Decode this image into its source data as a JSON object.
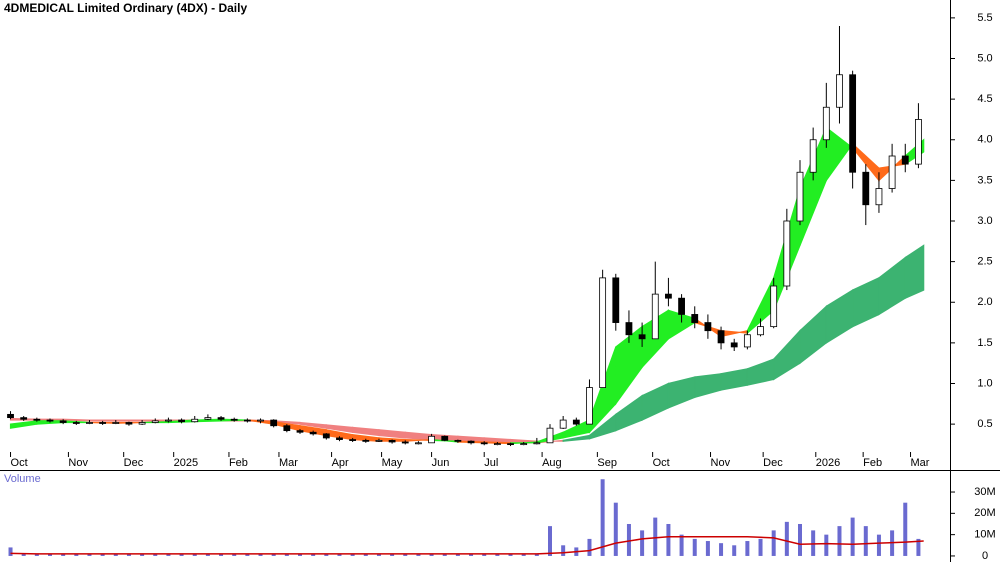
{
  "chart_data": [
    {
      "type": "candlestick",
      "title": "4DMEDICAL Limited Ordinary (4DX) - Daily",
      "x": [
        0,
        5,
        10,
        15,
        20,
        25,
        30,
        35,
        40,
        45,
        50,
        55,
        60,
        65,
        70,
        75,
        80,
        85,
        90,
        95,
        100,
        105,
        110,
        115,
        120,
        125,
        130,
        135,
        140,
        145,
        150,
        155,
        160,
        165,
        170,
        175,
        180,
        185,
        190,
        195,
        200,
        205,
        210,
        215,
        220,
        225,
        230,
        235,
        240,
        245,
        250,
        255,
        260,
        265,
        270,
        275,
        280,
        285,
        290,
        295,
        300,
        305,
        310,
        315,
        320,
        325,
        330,
        335,
        340,
        345
      ],
      "open": [
        0.62,
        0.58,
        0.56,
        0.55,
        0.54,
        0.52,
        0.51,
        0.52,
        0.51,
        0.52,
        0.5,
        0.52,
        0.54,
        0.55,
        0.53,
        0.56,
        0.58,
        0.56,
        0.55,
        0.54,
        0.55,
        0.48,
        0.42,
        0.4,
        0.38,
        0.33,
        0.31,
        0.3,
        0.29,
        0.3,
        0.28,
        0.27,
        0.27,
        0.35,
        0.3,
        0.29,
        0.27,
        0.26,
        0.26,
        0.25,
        0.26,
        0.27,
        0.45,
        0.55,
        0.5,
        0.95,
        2.3,
        1.75,
        1.6,
        1.55,
        2.1,
        2.05,
        1.85,
        1.75,
        1.65,
        1.5,
        1.45,
        1.6,
        1.7,
        2.2,
        3.0,
        3.6,
        4.0,
        4.4,
        4.8,
        3.6,
        3.2,
        3.4,
        3.8,
        3.7
      ],
      "high": [
        0.66,
        0.6,
        0.58,
        0.57,
        0.56,
        0.54,
        0.55,
        0.54,
        0.55,
        0.53,
        0.55,
        0.57,
        0.58,
        0.57,
        0.6,
        0.62,
        0.6,
        0.58,
        0.57,
        0.57,
        0.56,
        0.5,
        0.44,
        0.42,
        0.39,
        0.35,
        0.33,
        0.32,
        0.32,
        0.31,
        0.3,
        0.29,
        0.38,
        0.36,
        0.31,
        0.3,
        0.29,
        0.28,
        0.27,
        0.28,
        0.33,
        0.5,
        0.6,
        0.58,
        1.05,
        2.4,
        2.35,
        1.9,
        1.75,
        2.5,
        2.3,
        2.1,
        1.95,
        1.85,
        1.7,
        1.55,
        1.65,
        1.8,
        2.3,
        3.15,
        3.75,
        4.15,
        4.7,
        5.4,
        4.85,
        3.7,
        3.6,
        3.95,
        3.95,
        4.45
      ],
      "low": [
        0.56,
        0.54,
        0.53,
        0.52,
        0.5,
        0.49,
        0.5,
        0.49,
        0.5,
        0.48,
        0.49,
        0.51,
        0.52,
        0.51,
        0.52,
        0.55,
        0.54,
        0.53,
        0.52,
        0.51,
        0.46,
        0.4,
        0.38,
        0.36,
        0.31,
        0.29,
        0.28,
        0.27,
        0.28,
        0.26,
        0.25,
        0.25,
        0.27,
        0.29,
        0.27,
        0.25,
        0.24,
        0.24,
        0.23,
        0.24,
        0.25,
        0.27,
        0.44,
        0.48,
        0.5,
        0.95,
        1.65,
        1.5,
        1.45,
        1.55,
        1.95,
        1.75,
        1.68,
        1.55,
        1.42,
        1.4,
        1.42,
        1.58,
        1.68,
        2.15,
        2.95,
        3.5,
        3.9,
        4.2,
        3.4,
        2.95,
        3.1,
        3.35,
        3.6,
        3.65
      ],
      "close": [
        0.58,
        0.56,
        0.55,
        0.54,
        0.52,
        0.51,
        0.52,
        0.51,
        0.52,
        0.5,
        0.52,
        0.54,
        0.55,
        0.53,
        0.56,
        0.58,
        0.56,
        0.55,
        0.54,
        0.55,
        0.48,
        0.42,
        0.4,
        0.38,
        0.33,
        0.31,
        0.3,
        0.29,
        0.3,
        0.28,
        0.27,
        0.27,
        0.35,
        0.3,
        0.29,
        0.27,
        0.26,
        0.26,
        0.25,
        0.26,
        0.27,
        0.45,
        0.55,
        0.5,
        0.95,
        2.3,
        1.75,
        1.6,
        1.55,
        2.1,
        2.05,
        1.85,
        1.75,
        1.65,
        1.5,
        1.45,
        1.6,
        1.7,
        2.2,
        3.0,
        3.6,
        4.0,
        4.4,
        4.8,
        3.6,
        3.2,
        3.4,
        3.8,
        3.7,
        4.25
      ],
      "up_color": "#ffffff",
      "down_color": "#000000",
      "outline_color": "#000000",
      "ribbons": [
        {
          "x": [
            0,
            10,
            20,
            30,
            40,
            50,
            60,
            70,
            80,
            90,
            100,
            110,
            120,
            130,
            140,
            150,
            160,
            170,
            180,
            190,
            200,
            210,
            220,
            230,
            240,
            250,
            260,
            270,
            280,
            290,
            300,
            310,
            320,
            330,
            340,
            347
          ],
          "fast": [
            0.55,
            0.55,
            0.55,
            0.54,
            0.54,
            0.54,
            0.54,
            0.54,
            0.54,
            0.54,
            0.53,
            0.5,
            0.45,
            0.4,
            0.36,
            0.33,
            0.31,
            0.29,
            0.28,
            0.27,
            0.27,
            0.3,
            0.36,
            0.62,
            0.85,
            1.0,
            1.08,
            1.12,
            1.18,
            1.3,
            1.65,
            1.95,
            2.15,
            2.3,
            2.55,
            2.7
          ],
          "slow": [
            0.57,
            0.56,
            0.56,
            0.55,
            0.55,
            0.55,
            0.55,
            0.55,
            0.55,
            0.55,
            0.54,
            0.52,
            0.49,
            0.46,
            0.43,
            0.4,
            0.37,
            0.35,
            0.33,
            0.31,
            0.29,
            0.29,
            0.32,
            0.42,
            0.55,
            0.7,
            0.83,
            0.92,
            0.98,
            1.05,
            1.25,
            1.5,
            1.7,
            1.85,
            2.05,
            2.15
          ],
          "up_color": "#3cb371",
          "down_color": "#f08080"
        },
        {
          "x": [
            0,
            10,
            20,
            30,
            40,
            50,
            60,
            70,
            80,
            90,
            100,
            110,
            120,
            130,
            140,
            150,
            160,
            170,
            180,
            190,
            200,
            210,
            220,
            230,
            240,
            250,
            260,
            270,
            280,
            290,
            300,
            310,
            320,
            330,
            340,
            347
          ],
          "fast": [
            0.5,
            0.54,
            0.54,
            0.52,
            0.51,
            0.52,
            0.53,
            0.55,
            0.56,
            0.55,
            0.5,
            0.42,
            0.36,
            0.31,
            0.29,
            0.29,
            0.31,
            0.28,
            0.27,
            0.26,
            0.28,
            0.4,
            0.55,
            1.45,
            1.7,
            1.9,
            1.8,
            1.58,
            1.65,
            2.3,
            3.4,
            4.15,
            3.9,
            3.5,
            3.8,
            4.0
          ],
          "slow": [
            0.45,
            0.5,
            0.52,
            0.52,
            0.52,
            0.52,
            0.52,
            0.53,
            0.54,
            0.55,
            0.53,
            0.48,
            0.43,
            0.37,
            0.33,
            0.31,
            0.3,
            0.29,
            0.28,
            0.27,
            0.27,
            0.33,
            0.4,
            0.75,
            1.2,
            1.55,
            1.75,
            1.65,
            1.62,
            1.9,
            2.7,
            3.5,
            3.95,
            3.65,
            3.7,
            3.85
          ],
          "up_color": "#22ee22",
          "down_color": "#ff6a1a"
        }
      ],
      "xlim": [
        -4,
        357
      ],
      "ylim": [
        0.12,
        5.72
      ],
      "xticks": [
        {
          "value": 0,
          "label": "Oct"
        },
        {
          "value": 22,
          "label": "Nov"
        },
        {
          "value": 43,
          "label": "Dec"
        },
        {
          "value": 62,
          "label": "2025"
        },
        {
          "value": 83,
          "label": "Feb"
        },
        {
          "value": 102,
          "label": "Mar"
        },
        {
          "value": 122,
          "label": "Apr"
        },
        {
          "value": 141,
          "label": "May"
        },
        {
          "value": 160,
          "label": "Jun"
        },
        {
          "value": 180,
          "label": "Jul"
        },
        {
          "value": 202,
          "label": "Aug"
        },
        {
          "value": 223,
          "label": "Sep"
        },
        {
          "value": 244,
          "label": "Oct"
        },
        {
          "value": 266,
          "label": "Nov"
        },
        {
          "value": 286,
          "label": "Dec"
        },
        {
          "value": 306,
          "label": "2026"
        },
        {
          "value": 324,
          "label": "Feb"
        },
        {
          "value": 342,
          "label": "Mar"
        }
      ],
      "yticks": [
        0.5,
        {
          "value": 1,
          "label": "1.0"
        },
        1.5,
        {
          "value": 2,
          "label": "2.0"
        },
        2.5,
        {
          "value": 3,
          "label": "3.0"
        },
        3.5,
        {
          "value": 4,
          "label": "4.0"
        },
        4.5,
        {
          "value": 5,
          "label": "5.0"
        },
        5.5
      ]
    },
    {
      "type": "bar",
      "title": "Volume",
      "x": [
        0,
        5,
        10,
        15,
        20,
        25,
        30,
        35,
        40,
        45,
        50,
        55,
        60,
        65,
        70,
        75,
        80,
        85,
        90,
        95,
        100,
        105,
        110,
        115,
        120,
        125,
        130,
        135,
        140,
        145,
        150,
        155,
        160,
        165,
        170,
        175,
        180,
        185,
        190,
        195,
        200,
        205,
        210,
        215,
        220,
        225,
        230,
        235,
        240,
        245,
        250,
        255,
        260,
        265,
        270,
        275,
        280,
        285,
        290,
        295,
        300,
        305,
        310,
        315,
        320,
        325,
        330,
        335,
        340,
        345
      ],
      "values": [
        4000000,
        1000000,
        1000000,
        1000000,
        1000000,
        1000000,
        1000000,
        1000000,
        1000000,
        1000000,
        1000000,
        1000000,
        1000000,
        1000000,
        1000000,
        1000000,
        1000000,
        1000000,
        1000000,
        1000000,
        1000000,
        1000000,
        1000000,
        1000000,
        1000000,
        1000000,
        1000000,
        1000000,
        1000000,
        1000000,
        1000000,
        1000000,
        1000000,
        1000000,
        1000000,
        1000000,
        1000000,
        1000000,
        1000000,
        1000000,
        1000000,
        14000000,
        5000000,
        4000000,
        8000000,
        36000000,
        25000000,
        15000000,
        12000000,
        18000000,
        15000000,
        10000000,
        8000000,
        7000000,
        6000000,
        5000000,
        7000000,
        8000000,
        12000000,
        16000000,
        15000000,
        12000000,
        10000000,
        14000000,
        18000000,
        14000000,
        10000000,
        12000000,
        25000000,
        8000000
      ],
      "color": "#6a6ad0",
      "ma": {
        "x": [
          0,
          10,
          20,
          30,
          40,
          50,
          60,
          70,
          80,
          90,
          100,
          110,
          120,
          130,
          140,
          150,
          160,
          170,
          180,
          190,
          200,
          210,
          220,
          230,
          240,
          250,
          260,
          270,
          280,
          290,
          300,
          310,
          320,
          330,
          340,
          347
        ],
        "values": [
          1200000,
          1000000,
          1000000,
          1000000,
          1000000,
          1000000,
          1000000,
          1000000,
          1000000,
          1000000,
          1000000,
          1000000,
          1000000,
          1000000,
          1000000,
          1000000,
          1000000,
          1000000,
          1000000,
          1000000,
          1000000,
          1500000,
          2500000,
          6000000,
          8000000,
          9000000,
          9000000,
          9000000,
          9000000,
          8500000,
          5500000,
          5800000,
          5500000,
          6000000,
          6500000,
          7000000
        ],
        "color": "#cc0000"
      },
      "xlim": [
        -4,
        357
      ],
      "ylim": [
        -1900000,
        39400000
      ],
      "yticks": [
        0,
        {
          "value": 10000000,
          "label": "10M"
        },
        {
          "value": 20000000,
          "label": "20M"
        },
        {
          "value": 30000000,
          "label": "30M"
        }
      ]
    }
  ]
}
